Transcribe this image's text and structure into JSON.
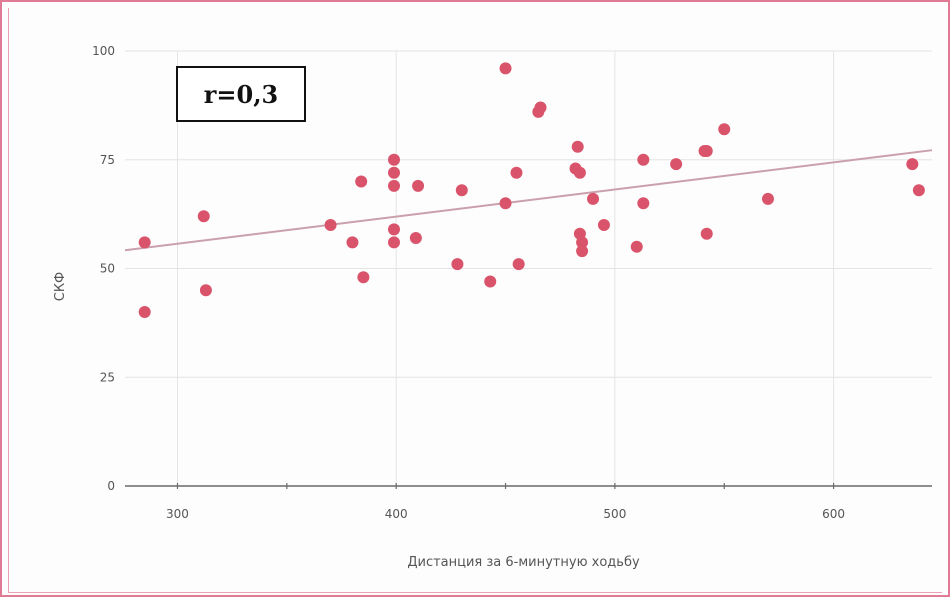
{
  "chart_data": {
    "type": "scatter",
    "xlabel": "Дистанция за 6-минутную ходьбу",
    "ylabel": "СКФ",
    "xlim": [
      276,
      645
    ],
    "ylim": [
      0,
      100
    ],
    "xticks": [
      300,
      400,
      500,
      600
    ],
    "yticks": [
      0,
      25,
      50,
      75,
      100
    ],
    "grid": true,
    "annotation": "r=0,3",
    "point_color": "#d9546b",
    "trend_color": "#c9a0ab",
    "trendline": {
      "x": [
        276,
        645
      ],
      "y": [
        54.2,
        77.2
      ]
    },
    "points": [
      {
        "x": 285,
        "y": 56
      },
      {
        "x": 285,
        "y": 40
      },
      {
        "x": 312,
        "y": 62
      },
      {
        "x": 313,
        "y": 45
      },
      {
        "x": 370,
        "y": 60
      },
      {
        "x": 380,
        "y": 56
      },
      {
        "x": 384,
        "y": 70
      },
      {
        "x": 385,
        "y": 48
      },
      {
        "x": 399,
        "y": 75
      },
      {
        "x": 399,
        "y": 72
      },
      {
        "x": 399,
        "y": 69
      },
      {
        "x": 399,
        "y": 59
      },
      {
        "x": 399,
        "y": 56
      },
      {
        "x": 409,
        "y": 57
      },
      {
        "x": 410,
        "y": 69
      },
      {
        "x": 428,
        "y": 51
      },
      {
        "x": 430,
        "y": 68
      },
      {
        "x": 443,
        "y": 47
      },
      {
        "x": 450,
        "y": 96
      },
      {
        "x": 450,
        "y": 65
      },
      {
        "x": 455,
        "y": 72
      },
      {
        "x": 456,
        "y": 51
      },
      {
        "x": 465,
        "y": 86
      },
      {
        "x": 466,
        "y": 87
      },
      {
        "x": 482,
        "y": 73
      },
      {
        "x": 483,
        "y": 78
      },
      {
        "x": 484,
        "y": 72
      },
      {
        "x": 484,
        "y": 58
      },
      {
        "x": 485,
        "y": 56
      },
      {
        "x": 485,
        "y": 54
      },
      {
        "x": 490,
        "y": 66
      },
      {
        "x": 495,
        "y": 60
      },
      {
        "x": 510,
        "y": 55
      },
      {
        "x": 513,
        "y": 75
      },
      {
        "x": 513,
        "y": 65
      },
      {
        "x": 528,
        "y": 74
      },
      {
        "x": 541,
        "y": 77
      },
      {
        "x": 542,
        "y": 77
      },
      {
        "x": 542,
        "y": 58
      },
      {
        "x": 550,
        "y": 82
      },
      {
        "x": 570,
        "y": 66
      },
      {
        "x": 636,
        "y": 74
      },
      {
        "x": 639,
        "y": 68
      }
    ]
  }
}
